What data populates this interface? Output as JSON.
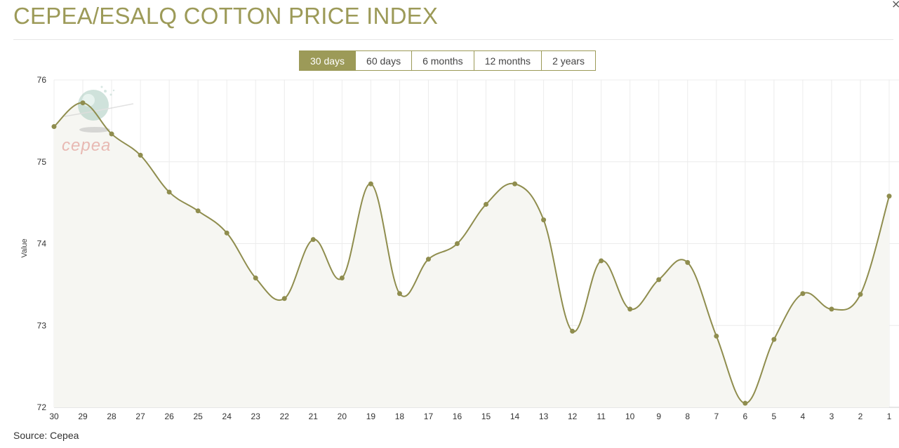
{
  "header": {
    "title": "CEPEA/ESALQ COTTON PRICE INDEX",
    "close_glyph": "×"
  },
  "tabs": [
    {
      "label": "30 days",
      "active": true
    },
    {
      "label": "60 days",
      "active": false
    },
    {
      "label": "6 months",
      "active": false
    },
    {
      "label": "12 months",
      "active": false
    },
    {
      "label": "2 years",
      "active": false
    }
  ],
  "footer": {
    "source": "Source: Cepea"
  },
  "watermark": {
    "text": "cepea",
    "icon": "cepea-globe-logo"
  },
  "colors": {
    "accent": "#9c9a58",
    "line": "#8f8d4e",
    "fill": "#f6f6f2",
    "grid": "#ececec",
    "watermark_text": "#e8b9b3"
  },
  "chart_data": {
    "type": "area",
    "ylabel": "Value",
    "xlabel": "",
    "ylim": [
      72,
      76
    ],
    "yticks": [
      72,
      73,
      74,
      75,
      76
    ],
    "grid": true,
    "smooth": true,
    "categories": [
      "30",
      "29",
      "28",
      "27",
      "26",
      "25",
      "24",
      "23",
      "22",
      "21",
      "20",
      "19",
      "18",
      "17",
      "16",
      "15",
      "14",
      "13",
      "12",
      "11",
      "10",
      "9",
      "8",
      "7",
      "6",
      "5",
      "4",
      "3",
      "2",
      "1"
    ],
    "series": [
      {
        "values": [
          75.43,
          75.72,
          75.34,
          75.08,
          74.63,
          74.4,
          74.13,
          73.58,
          73.33,
          74.05,
          73.58,
          74.73,
          73.39,
          73.81,
          74.0,
          74.48,
          74.73,
          74.29,
          72.93,
          73.79,
          73.2,
          73.56,
          73.77,
          72.87,
          72.05,
          72.83,
          73.39,
          73.2,
          73.38,
          74.58
        ]
      }
    ]
  }
}
